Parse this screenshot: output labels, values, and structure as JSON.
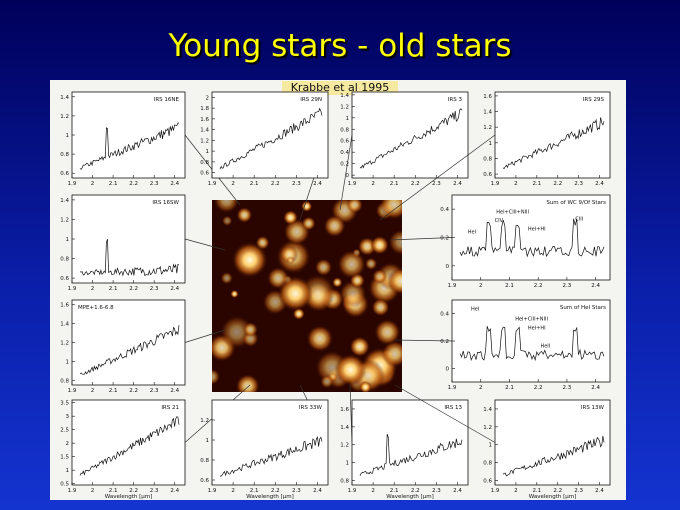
{
  "title": "Young stars - old stars",
  "figure": {
    "credit": "Krabbe et al 1995",
    "xticks": [
      1.9,
      2,
      2.1,
      2.2,
      2.3,
      2.4
    ],
    "xlim": [
      1.9,
      2.45
    ],
    "xlabel": "Wavelength [μm]",
    "panels": [
      {
        "label": "IRS 16NE",
        "ylim": [
          0.55,
          1.45
        ],
        "yticks": [
          0.6,
          0.8,
          1,
          1.2,
          1.4
        ]
      },
      {
        "label": "IRS 29N",
        "ylim": [
          0.5,
          2.1
        ],
        "yticks": [
          0.6,
          0.8,
          1,
          1.2,
          1.4,
          1.6,
          1.8,
          2
        ]
      },
      {
        "label": "IRS 3",
        "ylim": [
          -0.05,
          1.45
        ],
        "yticks": [
          0,
          0.2,
          0.4,
          0.6,
          0.8,
          1,
          1.2,
          1.4
        ]
      },
      {
        "label": "IRS 29S",
        "ylim": [
          0.55,
          1.65
        ],
        "yticks": [
          0.6,
          0.8,
          1,
          1.2,
          1.4,
          1.6
        ]
      },
      {
        "label": "IRS 16SW",
        "ylim": [
          0.55,
          1.45
        ],
        "yticks": [
          0.6,
          0.8,
          1,
          1.2,
          1.4
        ]
      },
      {
        "label": "Sum of WC 9/Of Stars",
        "ylim": [
          -0.1,
          0.5
        ],
        "yticks": [
          0,
          0.2,
          0.4
        ],
        "annotations": [
          "HeI",
          "CIV",
          "HeI+CIII+NIII",
          "HeI+HI",
          "CIII"
        ]
      },
      {
        "label": "MPE+1.6-6.8",
        "ylim": [
          0.75,
          1.65
        ],
        "yticks": [
          0.8,
          1,
          1.2,
          1.4,
          1.6
        ]
      },
      {
        "label": "Sum of HeI Stars",
        "ylim": [
          -0.1,
          0.5
        ],
        "yticks": [
          0,
          0.2,
          0.4
        ],
        "annotations": [
          "HeI",
          "HeI+CIII+NIII",
          "HeI+HI",
          "HeII"
        ]
      },
      {
        "label": "IRS 21",
        "ylim": [
          0.45,
          3.6
        ],
        "yticks": [
          0.5,
          1,
          1.5,
          2,
          2.5,
          3,
          3.5
        ]
      },
      {
        "label": "IRS 33W",
        "ylim": [
          0.55,
          1.4
        ],
        "yticks": [
          0.6,
          0.8,
          1,
          1.2
        ]
      },
      {
        "label": "IRS 13",
        "ylim": [
          0.75,
          1.7
        ],
        "yticks": [
          0.8,
          1,
          1.2,
          1.4,
          1.6
        ]
      },
      {
        "label": "IRS 13W",
        "ylim": [
          0.55,
          1.5
        ],
        "yticks": [
          0.6,
          0.8,
          1,
          1.2,
          1.4
        ]
      }
    ]
  }
}
